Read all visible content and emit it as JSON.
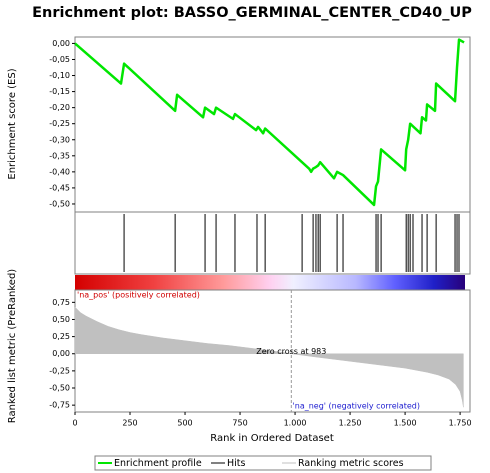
{
  "chart_data": [
    {
      "type": "line",
      "title": "Enrichment plot: BASSO_GERMINAL_CENTER_CD40_UP",
      "ylabel": "Enrichment score (ES)",
      "x": [
        0,
        209,
        223,
        455,
        464,
        582,
        591,
        632,
        641,
        718,
        727,
        823,
        832,
        855,
        864,
        1064,
        1073,
        1082,
        1095,
        1105,
        1114,
        1177,
        1191,
        1218,
        1359,
        1368,
        1377,
        1391,
        1500,
        1505,
        1514,
        1523,
        1570,
        1577,
        1595,
        1600,
        1636,
        1641,
        1727,
        1736,
        1745,
        1768
      ],
      "series": [
        {
          "name": "Enrichment profile",
          "color": "#00e600",
          "values": [
            0,
            -0.125,
            -0.063,
            -0.21,
            -0.16,
            -0.23,
            -0.2,
            -0.22,
            -0.2,
            -0.235,
            -0.22,
            -0.27,
            -0.26,
            -0.28,
            -0.265,
            -0.39,
            -0.4,
            -0.39,
            -0.385,
            -0.38,
            -0.37,
            -0.42,
            -0.4,
            -0.41,
            -0.503,
            -0.445,
            -0.43,
            -0.33,
            -0.395,
            -0.33,
            -0.3,
            -0.25,
            -0.28,
            -0.23,
            -0.24,
            -0.19,
            -0.21,
            -0.125,
            -0.18,
            -0.075,
            0.012,
            0.003
          ]
        }
      ],
      "xlim": [
        0,
        1795
      ],
      "ylim": [
        -0.525,
        0.02
      ],
      "yticks": [
        {
          "value": 0,
          "label": "0,00"
        },
        {
          "value": -0.05,
          "label": "-0,05"
        },
        {
          "value": -0.1,
          "label": "-0,10"
        },
        {
          "value": -0.15,
          "label": "-0,15"
        },
        {
          "value": -0.2,
          "label": "-0,20"
        },
        {
          "value": -0.25,
          "label": "-0,25"
        },
        {
          "value": -0.3,
          "label": "-0,30"
        },
        {
          "value": -0.35,
          "label": "-0,35"
        },
        {
          "value": -0.4,
          "label": "-0,40"
        },
        {
          "value": -0.45,
          "label": "-0,45"
        },
        {
          "value": -0.5,
          "label": "-0,50"
        }
      ],
      "grid": false
    },
    {
      "type": "rug",
      "series": [
        {
          "name": "Hits",
          "color": "#000000",
          "x": [
            223,
            455,
            591,
            641,
            727,
            827,
            864,
            1032,
            1082,
            1095,
            1105,
            1114,
            1191,
            1218,
            1368,
            1377,
            1391,
            1505,
            1514,
            1523,
            1536,
            1577,
            1600,
            1641,
            1727,
            1736,
            1745
          ]
        }
      ],
      "xlim": [
        0,
        1795
      ]
    },
    {
      "type": "area",
      "ylabel": "Ranked list metric (PreRanked)",
      "xlabel": "Rank in Ordered Dataset",
      "x": [
        0,
        25,
        50,
        100,
        150,
        200,
        250,
        300,
        400,
        500,
        600,
        700,
        800,
        900,
        983,
        1100,
        1200,
        1300,
        1400,
        1500,
        1600,
        1650,
        1700,
        1730,
        1750,
        1760,
        1765
      ],
      "series": [
        {
          "name": "Ranking metric scores",
          "color": "#c0c0c0",
          "values": [
            0.68,
            0.6,
            0.55,
            0.47,
            0.4,
            0.35,
            0.31,
            0.28,
            0.23,
            0.19,
            0.15,
            0.12,
            0.08,
            0.04,
            0,
            -0.05,
            -0.09,
            -0.13,
            -0.17,
            -0.21,
            -0.27,
            -0.31,
            -0.37,
            -0.45,
            -0.55,
            -0.68,
            -0.78
          ]
        }
      ],
      "xlim": [
        0,
        1795
      ],
      "ylim": [
        -0.85,
        0.93
      ],
      "xticks": [
        0,
        250,
        500,
        750,
        {
          "value": 1000,
          "label": "1.000"
        },
        {
          "value": 1250,
          "label": "1.250"
        },
        {
          "value": 1500,
          "label": "1.500"
        },
        {
          "value": 1750,
          "label": "1.750"
        }
      ],
      "yticks": [
        {
          "value": 0.75,
          "label": "0,75"
        },
        {
          "value": 0.5,
          "label": "0,50"
        },
        {
          "value": 0.25,
          "label": "0,25"
        },
        {
          "value": 0,
          "label": "0,00"
        },
        {
          "value": -0.25,
          "label": "-0,25"
        },
        {
          "value": -0.5,
          "label": "-0,50"
        },
        {
          "value": -0.75,
          "label": "-0,75"
        }
      ],
      "zero_cross": 983,
      "zero_cross_label": "Zero cross at 983",
      "pos_label": "'na_pos' (positively correlated)",
      "neg_label": "'na_neg' (negatively correlated)",
      "grid": false
    }
  ]
}
